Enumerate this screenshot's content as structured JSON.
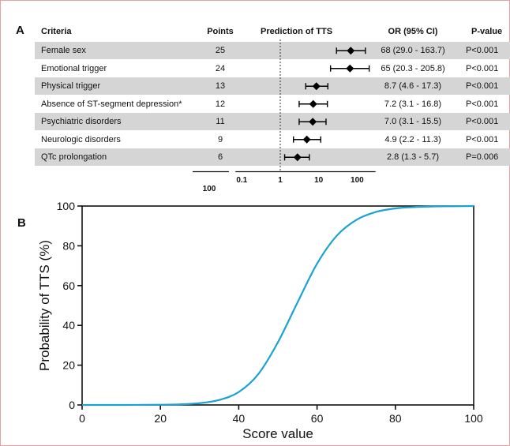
{
  "chart_data": [
    {
      "type": "table",
      "panel_label": "A",
      "columns": [
        "Criteria",
        "Points",
        "Prediction of TTS",
        "OR (95% CI)",
        "P-value"
      ],
      "rows": [
        {
          "criteria": "Female sex",
          "points": "25",
          "or_text": "68 (29.0 - 163.7)",
          "or": 68,
          "ci_low": 29.0,
          "ci_high": 163.7,
          "p": "P<0.001"
        },
        {
          "criteria": "Emotional trigger",
          "points": "24",
          "or_text": "65 (20.3 - 205.8)",
          "or": 65,
          "ci_low": 20.3,
          "ci_high": 205.8,
          "p": "P<0.001"
        },
        {
          "criteria": "Physical trigger",
          "points": "13",
          "or_text": "8.7 (4.6 - 17.3)",
          "or": 8.7,
          "ci_low": 4.6,
          "ci_high": 17.3,
          "p": "P<0.001"
        },
        {
          "criteria": "Absence of ST-segment depression*",
          "points": "12",
          "or_text": "7.2 (3.1 - 16.8)",
          "or": 7.2,
          "ci_low": 3.1,
          "ci_high": 16.8,
          "p": "P<0.001"
        },
        {
          "criteria": "Psychiatric disorders",
          "points": "11",
          "or_text": "7.0 (3.1 - 15.5)",
          "or": 7.0,
          "ci_low": 3.1,
          "ci_high": 15.5,
          "p": "P<0.001"
        },
        {
          "criteria": "Neurologic disorders",
          "points": "9",
          "or_text": "4.9 (2.2 - 11.3)",
          "or": 4.9,
          "ci_low": 2.2,
          "ci_high": 11.3,
          "p": "P<0.001"
        },
        {
          "criteria": "QTc prolongation",
          "points": "6",
          "or_text": "2.8 (1.3 - 5.7)",
          "or": 2.8,
          "ci_low": 1.3,
          "ci_high": 5.7,
          "p": "P=0.006"
        }
      ],
      "points_total": "100",
      "forest_axis": {
        "scale": "log",
        "ticks": [
          "0.1",
          "1",
          "10",
          "100"
        ],
        "xlim": [
          0.1,
          300
        ],
        "reference": 1
      }
    },
    {
      "type": "line",
      "panel_label": "B",
      "xlabel": "Score value",
      "ylabel": "Probability of TTS (%)",
      "xlim": [
        0,
        100
      ],
      "ylim": [
        0,
        100
      ],
      "xticks": [
        "0",
        "20",
        "40",
        "60",
        "80",
        "100"
      ],
      "yticks": [
        "0",
        "20",
        "40",
        "60",
        "80",
        "100"
      ],
      "series": [
        {
          "color": "#1aa3d1",
          "x": [
            0,
            10,
            20,
            25,
            30,
            35,
            40,
            45,
            50,
            55,
            60,
            65,
            70,
            75,
            80,
            85,
            90,
            95,
            100
          ],
          "y": [
            0,
            0,
            0.1,
            0.3,
            0.9,
            2.5,
            6.5,
            15.5,
            31.5,
            51.5,
            71,
            85,
            93,
            97,
            98.8,
            99.5,
            99.8,
            99.9,
            100
          ]
        }
      ]
    }
  ]
}
